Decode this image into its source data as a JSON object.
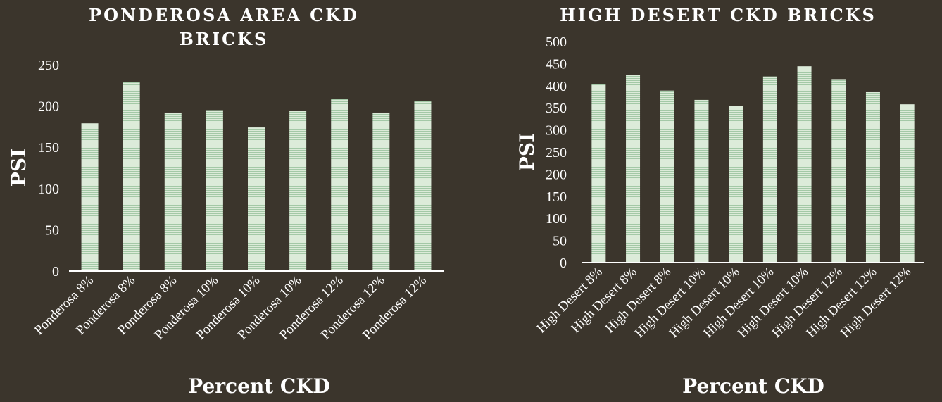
{
  "colors": {
    "background": "#3b352c",
    "text": "#ffffff",
    "bar_fill": "#dcebd9",
    "bar_stripe": "#a3c8a6",
    "axis_line": "#ffffff"
  },
  "chart_data": [
    {
      "type": "bar",
      "title_lines": [
        "PONDEROSA AREA CKD",
        "BRICKS"
      ],
      "xlabel": "Percent CKD",
      "ylabel": "PSI",
      "ylim": [
        0,
        250
      ],
      "yticks": [
        0,
        50,
        100,
        150,
        200,
        250
      ],
      "grid": false,
      "categories": [
        "Ponderosa 8%",
        "Ponderosa 8%",
        "Ponderosa 8%",
        "Ponderosa 10%",
        "Ponderosa 10%",
        "Ponderosa 10%",
        "Ponderosa 12%",
        "Ponderosa 12%",
        "Ponderosa 12%"
      ],
      "values": [
        179,
        229,
        192,
        195,
        174,
        194,
        209,
        192,
        206
      ]
    },
    {
      "type": "bar",
      "title_lines": [
        "HIGH DESERT CKD BRICKS"
      ],
      "xlabel": "Percent CKD",
      "ylabel": "PSI",
      "ylim": [
        0,
        500
      ],
      "yticks": [
        0,
        50,
        100,
        150,
        200,
        250,
        300,
        350,
        400,
        450,
        500
      ],
      "grid": false,
      "categories": [
        "High Desert 8%",
        "High Desert 8%",
        "High Desert 8%",
        "High Desert 10%",
        "High Desert 10%",
        "High Desert 10%",
        "High Desert 10%",
        "High Desert 12%",
        "High Desert 12%",
        "High Desert 12%"
      ],
      "values": [
        404,
        424,
        389,
        368,
        354,
        421,
        444,
        415,
        387,
        358
      ]
    }
  ]
}
